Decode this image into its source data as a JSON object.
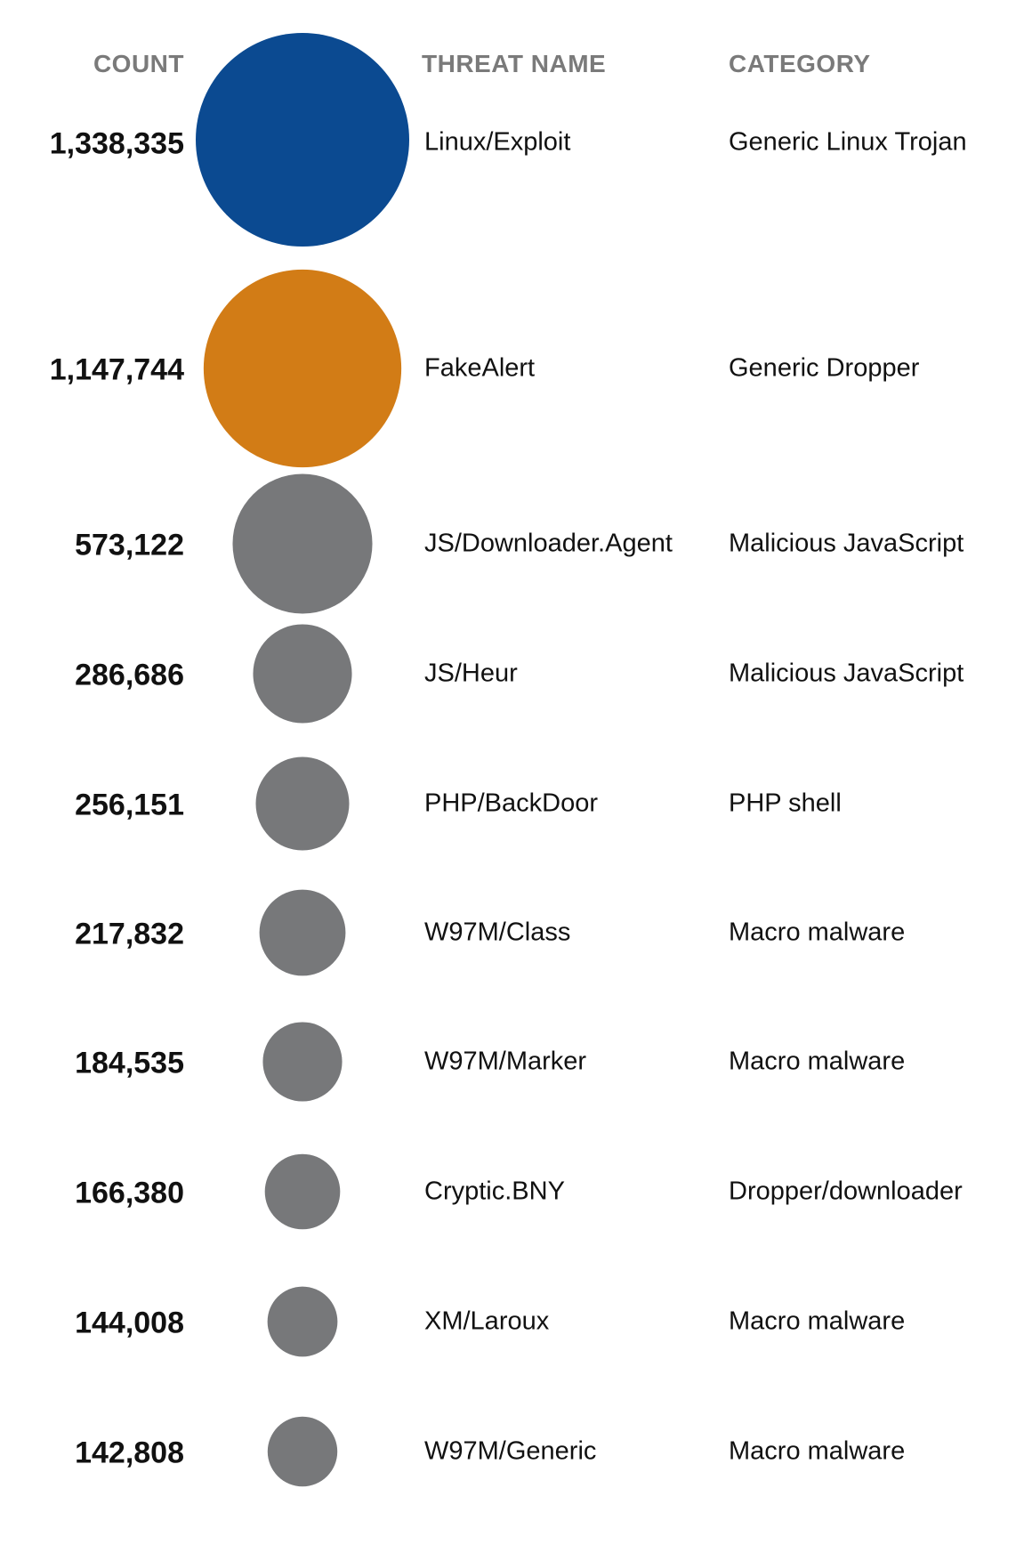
{
  "chart_data": {
    "type": "bubble-table",
    "columns": {
      "count": "COUNT",
      "threat_name": "THREAT NAME",
      "category": "CATEGORY"
    },
    "rows": [
      {
        "count": 1338335,
        "count_label": "1,338,335",
        "threat_name": "Linux/Exploit",
        "category": "Generic Linux Trojan",
        "color": "#0b4a91"
      },
      {
        "count": 1147744,
        "count_label": "1,147,744",
        "threat_name": "FakeAlert",
        "category": "Generic Dropper",
        "color": "#d27c16"
      },
      {
        "count": 573122,
        "count_label": "573,122",
        "threat_name": "JS/Downloader.Agent",
        "category": "Malicious JavaScript",
        "color": "#77787a"
      },
      {
        "count": 286686,
        "count_label": "286,686",
        "threat_name": "JS/Heur",
        "category": "Malicious JavaScript",
        "color": "#77787a"
      },
      {
        "count": 256151,
        "count_label": "256,151",
        "threat_name": "PHP/BackDoor",
        "category": "PHP shell",
        "color": "#77787a"
      },
      {
        "count": 217832,
        "count_label": "217,832",
        "threat_name": "W97M/Class",
        "category": "Macro malware",
        "color": "#77787a"
      },
      {
        "count": 184535,
        "count_label": "184,535",
        "threat_name": "W97M/Marker",
        "category": "Macro malware",
        "color": "#77787a"
      },
      {
        "count": 166380,
        "count_label": "166,380",
        "threat_name": "Cryptic.BNY",
        "category": "Dropper/downloader",
        "color": "#77787a"
      },
      {
        "count": 144008,
        "count_label": "144,008",
        "threat_name": "XM/Laroux",
        "category": "Macro malware",
        "color": "#77787a"
      },
      {
        "count": 142808,
        "count_label": "142,808",
        "threat_name": "W97M/Generic",
        "category": "Macro malware",
        "color": "#77787a"
      }
    ]
  }
}
